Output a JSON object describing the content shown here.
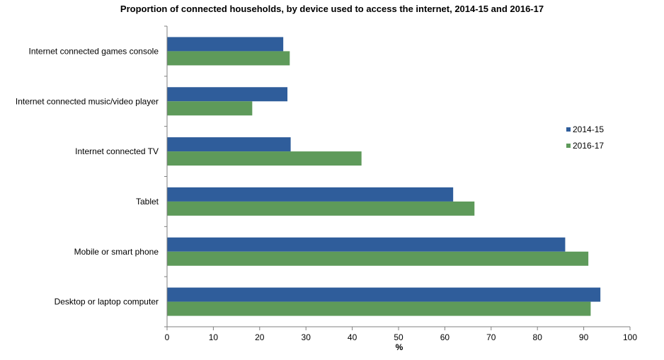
{
  "chart_data": {
    "type": "bar",
    "orientation": "horizontal",
    "title": "Proportion of connected households, by device used to access the internet, 2014-15 and 2016-17",
    "xlabel": "%",
    "ylabel": "",
    "xlim": [
      0,
      100
    ],
    "x_ticks": [
      0,
      10,
      20,
      30,
      40,
      50,
      60,
      70,
      80,
      90,
      100
    ],
    "grid": false,
    "legend_position": "right",
    "categories": [
      "Internet connected games console",
      "Internet connected music/video player",
      "Internet connected TV",
      "Tablet",
      "Mobile or smart phone",
      "Desktop or laptop computer"
    ],
    "series": [
      {
        "name": "2014-15",
        "color": "#2F5D9B",
        "values": [
          25.1,
          26.0,
          26.7,
          61.8,
          86.0,
          93.6
        ]
      },
      {
        "name": "2016-17",
        "color": "#5E9A5A",
        "values": [
          26.5,
          18.4,
          42.0,
          66.4,
          91.0,
          91.5
        ]
      }
    ]
  }
}
